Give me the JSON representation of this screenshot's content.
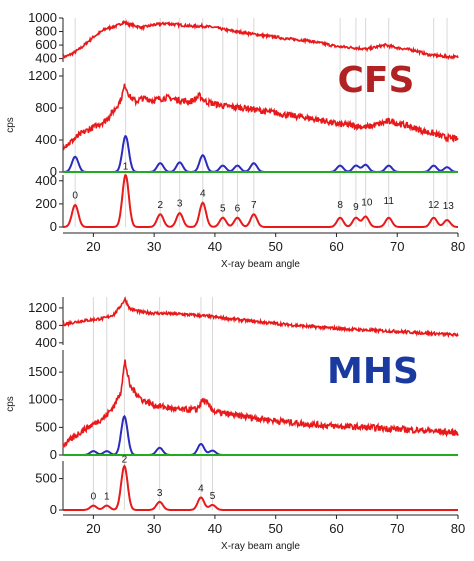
{
  "chart_data": [
    {
      "type": "line",
      "label": "CFS",
      "label_color": "#b22222",
      "xlabel": "X-ray beam angle",
      "ylabel": "cps",
      "xlim": [
        15,
        80
      ],
      "xticks": [
        20,
        30,
        40,
        50,
        60,
        70,
        80
      ],
      "reference_lines_color": "#d8d8d8",
      "panels": [
        {
          "id": "top",
          "ylim": [
            350,
            1000
          ],
          "yticks": [
            400,
            600,
            800,
            1000
          ],
          "series": [
            {
              "color": "#e8191a",
              "x": [
                15,
                16,
                17,
                18,
                19,
                20,
                22,
                24,
                25,
                26,
                28,
                30,
                32,
                34,
                36,
                38,
                40,
                42,
                45,
                48,
                50,
                52,
                55,
                58,
                60,
                63,
                65,
                68,
                70,
                73,
                75,
                78,
                80
              ],
              "y": [
                420,
                450,
                500,
                560,
                640,
                720,
                840,
                890,
                940,
                900,
                860,
                900,
                920,
                900,
                880,
                880,
                860,
                820,
                780,
                740,
                720,
                690,
                670,
                620,
                580,
                560,
                540,
                600,
                560,
                520,
                460,
                430,
                420
              ]
            }
          ]
        },
        {
          "id": "middle",
          "ylim": [
            0,
            1300
          ],
          "yticks": [
            0,
            400,
            800,
            1200
          ],
          "series": [
            {
              "color": "#e8191a",
              "x": [
                15,
                16,
                17,
                18,
                20,
                22,
                23.5,
                24.5,
                25.2,
                26,
                27,
                28,
                30,
                32,
                34,
                36,
                37.5,
                38.5,
                40,
                42,
                45,
                48,
                50,
                52,
                55,
                58,
                60,
                63,
                65,
                68,
                69,
                70,
                72,
                74,
                76,
                78,
                80
              ],
              "y": [
                330,
                360,
                420,
                480,
                560,
                640,
                780,
                900,
                1090,
                940,
                880,
                920,
                900,
                930,
                900,
                880,
                950,
                880,
                850,
                820,
                800,
                760,
                740,
                710,
                680,
                640,
                600,
                580,
                560,
                620,
                640,
                610,
                570,
                520,
                480,
                430,
                410
              ]
            },
            {
              "color": "#2b2bbd",
              "peaks": [
                [
                  17,
                  190
                ],
                [
                  25.3,
                  450
                ],
                [
                  31,
                  110
                ],
                [
                  34.2,
                  120
                ],
                [
                  38,
                  210
                ],
                [
                  41.3,
                  80
                ],
                [
                  43.7,
                  80
                ],
                [
                  46.4,
                  110
                ],
                [
                  60.6,
                  80
                ],
                [
                  63.2,
                  80
                ],
                [
                  64.8,
                  90
                ],
                [
                  68.6,
                  80
                ],
                [
                  76,
                  80
                ],
                [
                  78.2,
                  60
                ]
              ]
            },
            {
              "color": "#22aa22",
              "x": [
                15,
                80
              ],
              "y": [
                0,
                0
              ]
            }
          ]
        },
        {
          "id": "bottom",
          "ylim": [
            0,
            450
          ],
          "yticks": [
            0,
            200,
            400
          ],
          "series": [
            {
              "color": "#e8191a",
              "peaks": [
                [
                  17,
                  190
                ],
                [
                  25.3,
                  450
                ],
                [
                  31,
                  110
                ],
                [
                  34.2,
                  120
                ],
                [
                  38,
                  210
                ],
                [
                  41.3,
                  80
                ],
                [
                  43.7,
                  80
                ],
                [
                  46.4,
                  110
                ],
                [
                  60.6,
                  80
                ],
                [
                  63.2,
                  80
                ],
                [
                  64.8,
                  90
                ],
                [
                  68.6,
                  80
                ],
                [
                  76,
                  80
                ],
                [
                  78.2,
                  60
                ]
              ]
            }
          ],
          "peak_labels": [
            {
              "text": "0",
              "x": 17,
              "y": 220
            },
            {
              "text": "1",
              "x": 25.3,
              "y": 470
            },
            {
              "text": "2",
              "x": 31,
              "y": 140
            },
            {
              "text": "3",
              "x": 34.2,
              "y": 150
            },
            {
              "text": "4",
              "x": 38,
              "y": 240
            },
            {
              "text": "5",
              "x": 41.3,
              "y": 110
            },
            {
              "text": "6",
              "x": 43.7,
              "y": 110
            },
            {
              "text": "7",
              "x": 46.4,
              "y": 140
            },
            {
              "text": "8",
              "x": 60.6,
              "y": 140
            },
            {
              "text": "9",
              "x": 63.2,
              "y": 120
            },
            {
              "text": "10",
              "x": 65.0,
              "y": 160
            },
            {
              "text": "11",
              "x": 68.6,
              "y": 175
            },
            {
              "text": "12",
              "x": 76.0,
              "y": 140
            },
            {
              "text": "13",
              "x": 78.4,
              "y": 130
            }
          ]
        }
      ],
      "reference_lines": [
        17,
        25.3,
        31,
        34.2,
        38,
        41.3,
        43.7,
        46.4,
        60.6,
        63.2,
        64.8,
        68.6,
        76,
        78.2
      ]
    },
    {
      "type": "line",
      "label": "MHS",
      "label_color": "#1a3aa0",
      "xlabel": "X-ray beam angle",
      "ylabel": "cps",
      "xlim": [
        15,
        80
      ],
      "xticks": [
        20,
        30,
        40,
        50,
        60,
        70,
        80
      ],
      "reference_lines_color": "#d8d8d8",
      "panels": [
        {
          "id": "top",
          "ylim": [
            350,
            1450
          ],
          "yticks": [
            400,
            800,
            1200
          ],
          "series": [
            {
              "color": "#e8191a",
              "x": [
                15,
                16,
                18,
                20,
                22,
                23.5,
                24.5,
                25.2,
                26,
                28,
                30,
                34,
                38,
                42,
                46,
                50,
                55,
                60,
                65,
                70,
                75,
                80
              ],
              "y": [
                820,
                850,
                900,
                930,
                970,
                1060,
                1250,
                1400,
                1180,
                1100,
                1080,
                1060,
                1020,
                960,
                900,
                840,
                780,
                730,
                690,
                660,
                620,
                580
              ]
            }
          ]
        },
        {
          "id": "middle",
          "ylim": [
            0,
            1900
          ],
          "yticks": [
            0,
            500,
            1000,
            1500
          ],
          "series": [
            {
              "color": "#e8191a",
              "x": [
                15,
                16,
                18,
                20,
                22,
                23.5,
                24.5,
                25.2,
                26,
                28,
                30,
                34,
                37,
                38,
                40,
                42,
                46,
                50,
                55,
                60,
                65,
                70,
                75,
                80
              ],
              "y": [
                180,
                250,
                430,
                560,
                700,
                900,
                1150,
                1700,
                1250,
                1000,
                900,
                820,
                820,
                1000,
                780,
                740,
                680,
                620,
                560,
                520,
                500,
                470,
                440,
                400
              ]
            },
            {
              "color": "#2b2bbd",
              "peaks": [
                [
                  20,
                  70
                ],
                [
                  22.2,
                  70
                ],
                [
                  25.1,
                  700
                ],
                [
                  30.9,
                  130
                ],
                [
                  37.7,
                  200
                ],
                [
                  39.6,
                  80
                ]
              ]
            },
            {
              "color": "#22aa22",
              "x": [
                15,
                80
              ],
              "y": [
                0,
                0
              ]
            }
          ]
        },
        {
          "id": "bottom",
          "ylim": [
            0,
            780
          ],
          "yticks": [
            0,
            500
          ],
          "series": [
            {
              "color": "#e8191a",
              "peaks": [
                [
                  20,
                  70
                ],
                [
                  22.2,
                  70
                ],
                [
                  25.1,
                  700
                ],
                [
                  30.9,
                  130
                ],
                [
                  37.7,
                  200
                ],
                [
                  39.6,
                  80
                ]
              ]
            }
          ],
          "peak_labels": [
            {
              "text": "0",
              "x": 20,
              "y": 120
            },
            {
              "text": "1",
              "x": 22.2,
              "y": 120
            },
            {
              "text": "2",
              "x": 25.1,
              "y": 710
            },
            {
              "text": "3",
              "x": 30.9,
              "y": 175
            },
            {
              "text": "4",
              "x": 37.7,
              "y": 250
            },
            {
              "text": "5",
              "x": 39.6,
              "y": 130
            }
          ]
        }
      ],
      "reference_lines": [
        20,
        22.2,
        25.1,
        30.9,
        37.7,
        39.6
      ]
    }
  ]
}
